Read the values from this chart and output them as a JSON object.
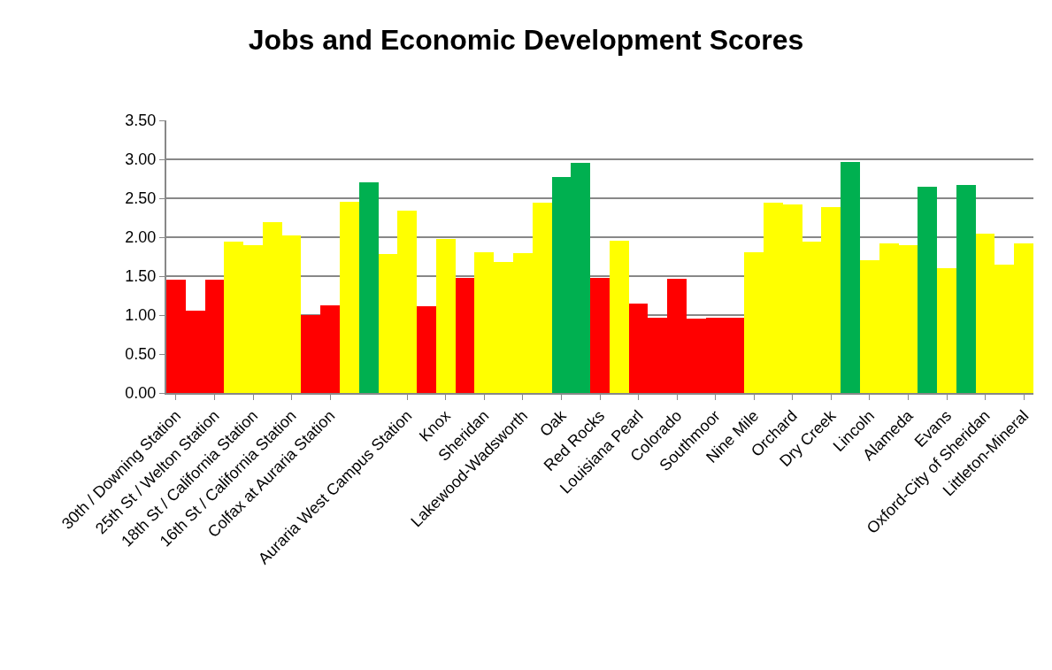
{
  "chart_data": {
    "type": "bar",
    "title": "Jobs and Economic Development Scores",
    "categories": [
      "30th / Downing Station",
      null,
      "25th St / Welton Station",
      null,
      "18th St / California Station",
      null,
      "16th St / California Station",
      null,
      "Colfax at Auraria Station",
      null,
      null,
      null,
      "Auraria West Campus Station",
      null,
      "Knox",
      null,
      "Sheridan",
      null,
      "Lakewood-Wadsworth",
      null,
      "Oak",
      null,
      "Red Rocks",
      null,
      "Louisiana Pearl",
      null,
      "Colorado",
      null,
      "Southmoor",
      null,
      "Nine Mile",
      null,
      "Orchard",
      null,
      "Dry Creek",
      null,
      "Lincoln",
      null,
      "Alameda",
      null,
      "Evans",
      null,
      "Oxford-City of Sheridan",
      null,
      "Littleton-Mineral"
    ],
    "values": [
      1.46,
      1.06,
      1.46,
      1.94,
      1.9,
      2.19,
      2.02,
      1.0,
      1.12,
      2.46,
      2.71,
      1.78,
      2.34,
      1.11,
      1.98,
      1.48,
      1.81,
      1.68,
      1.79,
      2.44,
      2.77,
      2.96,
      1.48,
      1.95,
      1.15,
      0.97,
      1.47,
      0.96,
      0.97,
      0.97,
      1.81,
      2.44,
      2.42,
      1.94,
      2.39,
      2.97,
      1.71,
      1.92,
      1.9,
      2.65,
      1.6,
      2.67,
      2.04,
      1.65,
      1.92
    ],
    "colors": [
      "#ff0000",
      "#ff0000",
      "#ff0000",
      "#ffff00",
      "#ffff00",
      "#ffff00",
      "#ffff00",
      "#ff0000",
      "#ff0000",
      "#ffff00",
      "#00b050",
      "#ffff00",
      "#ffff00",
      "#ff0000",
      "#ffff00",
      "#ff0000",
      "#ffff00",
      "#ffff00",
      "#ffff00",
      "#ffff00",
      "#00b050",
      "#00b050",
      "#ff0000",
      "#ffff00",
      "#ff0000",
      "#ff0000",
      "#ff0000",
      "#ff0000",
      "#ff0000",
      "#ff0000",
      "#ffff00",
      "#ffff00",
      "#ffff00",
      "#ffff00",
      "#ffff00",
      "#00b050",
      "#ffff00",
      "#ffff00",
      "#ffff00",
      "#00b050",
      "#ffff00",
      "#00b050",
      "#ffff00",
      "#ffff00",
      "#ffff00"
    ],
    "ylim": [
      0,
      3.5
    ],
    "yticks": [
      {
        "value": 0,
        "label": "0.00"
      },
      {
        "value": 0.5,
        "label": "0.50"
      },
      {
        "value": 1,
        "label": "1.00"
      },
      {
        "value": 1.5,
        "label": "1.50"
      },
      {
        "value": 2,
        "label": "2.00"
      },
      {
        "value": 2.5,
        "label": "2.50"
      },
      {
        "value": 3,
        "label": "3.00"
      },
      {
        "value": 3.5,
        "label": "3.50"
      }
    ],
    "grid": "y",
    "legend": false
  }
}
